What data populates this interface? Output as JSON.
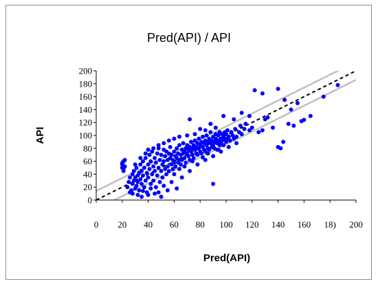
{
  "chart_data": {
    "type": "scatter",
    "title": "Pred(API) / API",
    "xlabel": "Pred(API)",
    "ylabel": "API",
    "xlim": [
      0,
      200
    ],
    "ylim": [
      0,
      200
    ],
    "x_ticks": [
      "0",
      "20",
      "40",
      "60",
      "80",
      "100",
      "120",
      "140",
      "160",
      "18)",
      "200"
    ],
    "y_ticks": [
      "0",
      "20",
      "40",
      "60",
      "80",
      "100",
      "120",
      "140",
      "160",
      "180",
      "200"
    ],
    "grid": false,
    "legend": "none",
    "reference_lines": [
      {
        "style": "dashed",
        "color": "#000000",
        "x": [
          0,
          200
        ],
        "y": [
          0,
          200
        ]
      },
      {
        "style": "solid",
        "color": "#bfbfbf",
        "x": [
          0,
          200
        ],
        "y": [
          14,
          214
        ]
      },
      {
        "style": "solid",
        "color": "#bfbfbf",
        "x": [
          0,
          200
        ],
        "y": [
          -14,
          186
        ]
      }
    ],
    "series": [
      {
        "color": "#0000ff",
        "points": [
          [
            20,
            50
          ],
          [
            20,
            55
          ],
          [
            21,
            60
          ],
          [
            20,
            57
          ],
          [
            21,
            48
          ],
          [
            22,
            62
          ],
          [
            22,
            52
          ],
          [
            21,
            45
          ],
          [
            24,
            20
          ],
          [
            25,
            28
          ],
          [
            26,
            35
          ],
          [
            27,
            15
          ],
          [
            28,
            40
          ],
          [
            28,
            25
          ],
          [
            29,
            30
          ],
          [
            29,
            45
          ],
          [
            30,
            18
          ],
          [
            30,
            35
          ],
          [
            31,
            50
          ],
          [
            31,
            22
          ],
          [
            32,
            38
          ],
          [
            32,
            28
          ],
          [
            33,
            42
          ],
          [
            33,
            15
          ],
          [
            34,
            55
          ],
          [
            34,
            32
          ],
          [
            35,
            25
          ],
          [
            35,
            45
          ],
          [
            36,
            60
          ],
          [
            36,
            38
          ],
          [
            37,
            20
          ],
          [
            37,
            50
          ],
          [
            38,
            30
          ],
          [
            38,
            65
          ],
          [
            39,
            42
          ],
          [
            39,
            12
          ],
          [
            40,
            55
          ],
          [
            40,
            35
          ],
          [
            41,
            70
          ],
          [
            41,
            48
          ],
          [
            42,
            25
          ],
          [
            42,
            60
          ],
          [
            43,
            40
          ],
          [
            43,
            75
          ],
          [
            44,
            52
          ],
          [
            44,
            30
          ],
          [
            45,
            65
          ],
          [
            45,
            45
          ],
          [
            46,
            20
          ],
          [
            46,
            58
          ],
          [
            47,
            72
          ],
          [
            47,
            38
          ],
          [
            48,
            50
          ],
          [
            48,
            80
          ],
          [
            49,
            62
          ],
          [
            49,
            28
          ],
          [
            50,
            45
          ],
          [
            50,
            70
          ],
          [
            51,
            55
          ],
          [
            51,
            35
          ],
          [
            52,
            78
          ],
          [
            52,
            60
          ],
          [
            53,
            48
          ],
          [
            53,
            68
          ],
          [
            54,
            40
          ],
          [
            54,
            75
          ],
          [
            55,
            62
          ],
          [
            55,
            52
          ],
          [
            56,
            72
          ],
          [
            56,
            45
          ],
          [
            57,
            65
          ],
          [
            57,
            82
          ],
          [
            58,
            55
          ],
          [
            58,
            70
          ],
          [
            59,
            48
          ],
          [
            59,
            62
          ],
          [
            60,
            75
          ],
          [
            60,
            58
          ],
          [
            61,
            68
          ],
          [
            61,
            52
          ],
          [
            62,
            80
          ],
          [
            62,
            65
          ],
          [
            63,
            58
          ],
          [
            63,
            72
          ],
          [
            64,
            62
          ],
          [
            64,
            85
          ],
          [
            65,
            70
          ],
          [
            65,
            55
          ],
          [
            66,
            78
          ],
          [
            66,
            62
          ],
          [
            67,
            72
          ],
          [
            67,
            88
          ],
          [
            68,
            65
          ],
          [
            68,
            75
          ],
          [
            69,
            80
          ],
          [
            69,
            58
          ],
          [
            70,
            72
          ],
          [
            70,
            85
          ],
          [
            71,
            68
          ],
          [
            71,
            78
          ],
          [
            72,
            82
          ],
          [
            72,
            62
          ],
          [
            73,
            75
          ],
          [
            73,
            90
          ],
          [
            74,
            70
          ],
          [
            74,
            80
          ],
          [
            75,
            85
          ],
          [
            75,
            65
          ],
          [
            76,
            78
          ],
          [
            76,
            92
          ],
          [
            77,
            72
          ],
          [
            77,
            82
          ],
          [
            78,
            88
          ],
          [
            78,
            70
          ],
          [
            79,
            80
          ],
          [
            79,
            95
          ],
          [
            80,
            75
          ],
          [
            80,
            85
          ],
          [
            81,
            90
          ],
          [
            81,
            72
          ],
          [
            82,
            82
          ],
          [
            82,
            98
          ],
          [
            83,
            78
          ],
          [
            83,
            88
          ],
          [
            84,
            92
          ],
          [
            84,
            75
          ],
          [
            85,
            85
          ],
          [
            85,
            100
          ],
          [
            86,
            80
          ],
          [
            86,
            90
          ],
          [
            87,
            95
          ],
          [
            87,
            78
          ],
          [
            88,
            88
          ],
          [
            88,
            105
          ],
          [
            89,
            82
          ],
          [
            89,
            92
          ],
          [
            90,
            98
          ],
          [
            90,
            85
          ],
          [
            91,
            90
          ],
          [
            91,
            80
          ],
          [
            92,
            95
          ],
          [
            92,
            102
          ],
          [
            93,
            88
          ],
          [
            93,
            78
          ],
          [
            94,
            100
          ],
          [
            94,
            92
          ],
          [
            95,
            85
          ],
          [
            95,
            105
          ],
          [
            96,
            95
          ],
          [
            96,
            88
          ],
          [
            97,
            102
          ],
          [
            97,
            92
          ],
          [
            98,
            98
          ],
          [
            98,
            85
          ],
          [
            99,
            105
          ],
          [
            99,
            95
          ],
          [
            100,
            90
          ],
          [
            100,
            102
          ],
          [
            101,
            108
          ],
          [
            101,
            95
          ],
          [
            102,
            98
          ],
          [
            103,
            92
          ],
          [
            104,
            105
          ],
          [
            105,
            100
          ],
          [
            106,
            95
          ],
          [
            107,
            110
          ],
          [
            108,
            98
          ],
          [
            110,
            105
          ],
          [
            111,
            115
          ],
          [
            112,
            102
          ],
          [
            114,
            110
          ],
          [
            115,
            118
          ],
          [
            118,
            108
          ],
          [
            120,
            112
          ],
          [
            72,
            125
          ],
          [
            80,
            110
          ],
          [
            88,
            118
          ],
          [
            98,
            130
          ],
          [
            106,
            125
          ],
          [
            112,
            135
          ],
          [
            118,
            130
          ],
          [
            122,
            170
          ],
          [
            128,
            165
          ],
          [
            140,
            172
          ],
          [
            145,
            155
          ],
          [
            150,
            140
          ],
          [
            155,
            150
          ],
          [
            165,
            130
          ],
          [
            175,
            160
          ],
          [
            186,
            178
          ],
          [
            158,
            122
          ],
          [
            160,
            124
          ],
          [
            148,
            118
          ],
          [
            132,
            128
          ],
          [
            128,
            108
          ],
          [
            140,
            82
          ],
          [
            142,
            80
          ],
          [
            136,
            112
          ],
          [
            125,
            105
          ],
          [
            130,
            125
          ],
          [
            152,
            115
          ],
          [
            144,
            90
          ],
          [
            90,
            25
          ],
          [
            62,
            18
          ],
          [
            55,
            15
          ],
          [
            45,
            10
          ],
          [
            35,
            5
          ],
          [
            40,
            8
          ],
          [
            50,
            5
          ],
          [
            48,
            12
          ],
          [
            28,
            10
          ],
          [
            32,
            8
          ],
          [
            26,
            12
          ],
          [
            36,
            14
          ],
          [
            42,
            18
          ],
          [
            58,
            28
          ],
          [
            52,
            22
          ],
          [
            66,
            35
          ],
          [
            72,
            45
          ],
          [
            78,
            55
          ],
          [
            84,
            62
          ],
          [
            90,
            68
          ],
          [
            96,
            75
          ],
          [
            102,
            82
          ],
          [
            108,
            88
          ],
          [
            60,
            40
          ],
          [
            64,
            48
          ],
          [
            68,
            52
          ],
          [
            74,
            60
          ],
          [
            82,
            66
          ],
          [
            86,
            72
          ],
          [
            94,
            78
          ],
          [
            30,
            55
          ],
          [
            34,
            65
          ],
          [
            38,
            72
          ],
          [
            40,
            78
          ],
          [
            44,
            80
          ],
          [
            48,
            85
          ],
          [
            52,
            88
          ],
          [
            56,
            92
          ],
          [
            60,
            95
          ],
          [
            64,
            98
          ],
          [
            70,
            100
          ],
          [
            76,
            102
          ],
          [
            84,
            108
          ],
          [
            92,
            112
          ]
        ]
      }
    ]
  }
}
